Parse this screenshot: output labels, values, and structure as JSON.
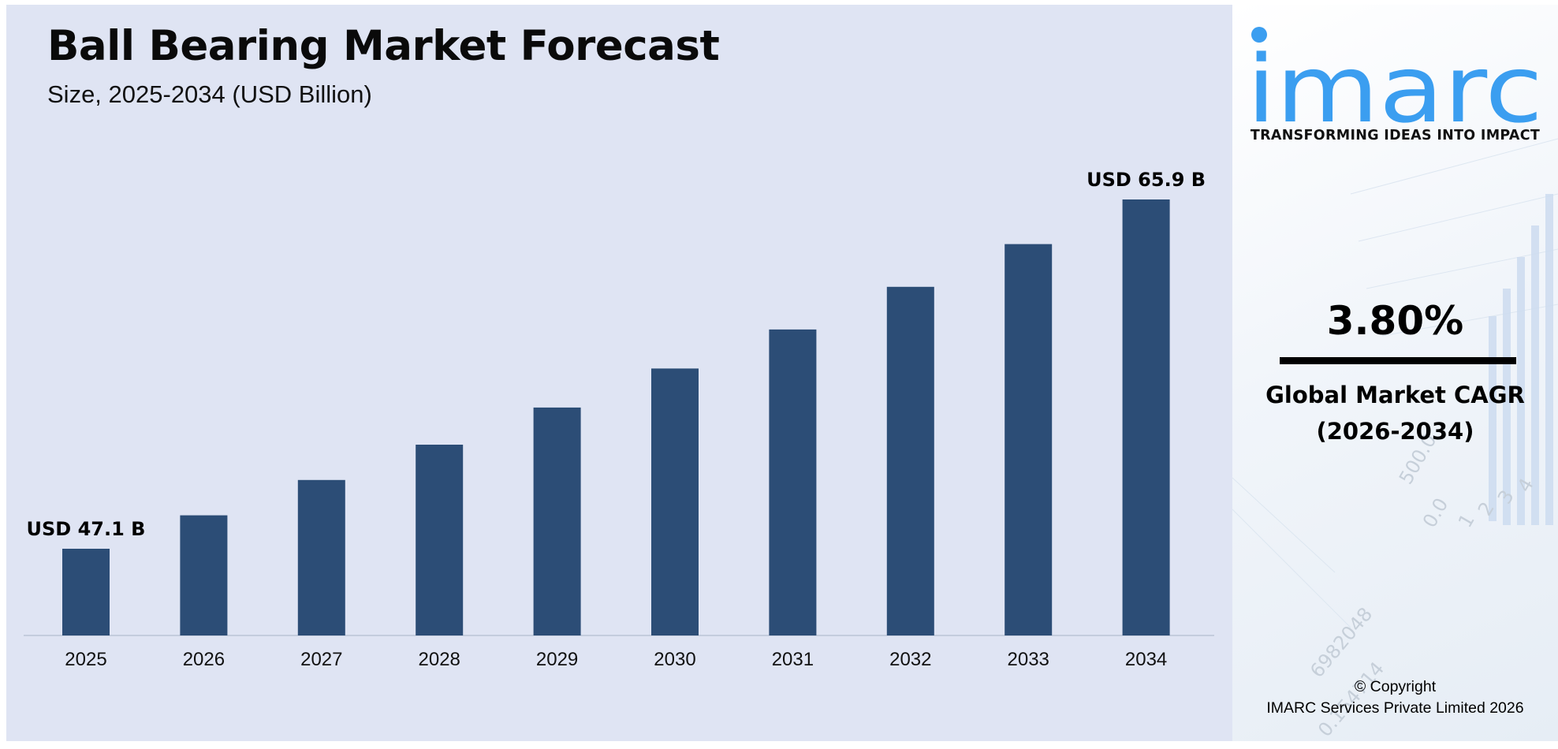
{
  "chart_data": {
    "type": "bar",
    "title": "Ball Bearing Market Forecast",
    "subtitle": "Size, 2025-2034 (USD Billion)",
    "categories": [
      "2025",
      "2026",
      "2027",
      "2028",
      "2029",
      "2030",
      "2031",
      "2032",
      "2033",
      "2034"
    ],
    "values": [
      47.1,
      48.9,
      50.8,
      52.7,
      54.7,
      56.8,
      58.9,
      61.2,
      63.5,
      65.9
    ],
    "data_labels": [
      {
        "index": 0,
        "text": "USD 47.1 B"
      },
      {
        "index": 9,
        "text": "USD 65.9 B"
      }
    ],
    "bar_color": "#2c4d76",
    "background_color": "#dfe4f3",
    "grid": false,
    "legend": "none",
    "xlabel": "",
    "ylabel": ""
  },
  "sidebar": {
    "logo_text": "imarc",
    "logo_color": "#3b9ef0",
    "tagline": "TRANSFORMING IDEAS INTO IMPACT",
    "cagr_value": "3.80%",
    "cagr_label_line1": "Global Market CAGR",
    "cagr_label_line2": "(2026-2034)",
    "copyright_line1": "© Copyright",
    "copyright_line2": "IMARC Services Private Limited 2026"
  }
}
